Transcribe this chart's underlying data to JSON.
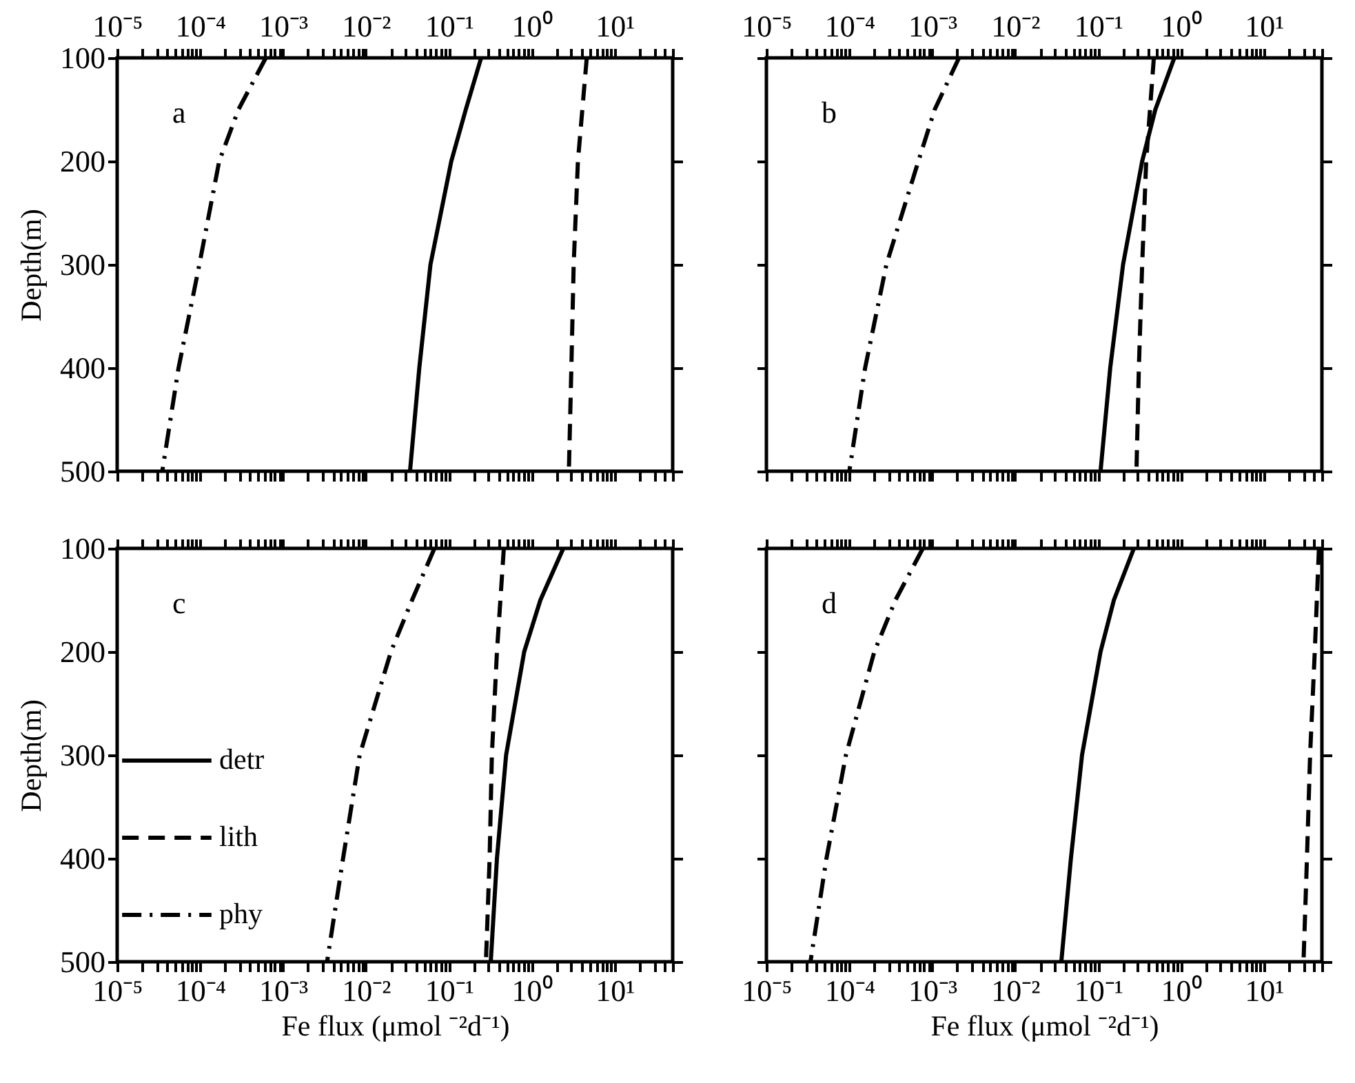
{
  "chart_data": [
    {
      "type": "line",
      "log": "x",
      "ylabel": "Depth(m)",
      "annotations": [
        "a"
      ],
      "xlim": [
        1e-05,
        50
      ],
      "xticks": [
        {
          "value": 1e-05,
          "label": "10⁻⁵"
        },
        {
          "value": 2e-05,
          "label": null
        },
        {
          "value": 3e-05,
          "label": null
        },
        {
          "value": 4e-05,
          "label": null
        },
        {
          "value": 5e-05,
          "label": null
        },
        {
          "value": 6e-05,
          "label": null
        },
        {
          "value": 7e-05,
          "label": null
        },
        {
          "value": 8e-05,
          "label": null
        },
        {
          "value": 9e-05,
          "label": null
        },
        {
          "value": 0.0001,
          "label": "10⁻⁴"
        },
        {
          "value": 0.0002,
          "label": null
        },
        {
          "value": 0.0003,
          "label": null
        },
        {
          "value": 0.0004,
          "label": null
        },
        {
          "value": 0.0005,
          "label": null
        },
        {
          "value": 0.0006,
          "label": null
        },
        {
          "value": 0.0007,
          "label": null
        },
        {
          "value": 0.0008,
          "label": null
        },
        {
          "value": 0.0009,
          "label": null
        },
        {
          "value": 0.001,
          "label": "10⁻³"
        },
        {
          "value": 0.002,
          "label": null
        },
        {
          "value": 0.003,
          "label": null
        },
        {
          "value": 0.004,
          "label": null
        },
        {
          "value": 0.005,
          "label": null
        },
        {
          "value": 0.006,
          "label": null
        },
        {
          "value": 0.007,
          "label": null
        },
        {
          "value": 0.008,
          "label": null
        },
        {
          "value": 0.009,
          "label": null
        },
        {
          "value": 0.01,
          "label": "10⁻²"
        },
        {
          "value": 0.02,
          "label": null
        },
        {
          "value": 0.03,
          "label": null
        },
        {
          "value": 0.04,
          "label": null
        },
        {
          "value": 0.05,
          "label": null
        },
        {
          "value": 0.06,
          "label": null
        },
        {
          "value": 0.07,
          "label": null
        },
        {
          "value": 0.08,
          "label": null
        },
        {
          "value": 0.09,
          "label": null
        },
        {
          "value": 0.1,
          "label": "10⁻¹"
        },
        {
          "value": 0.2,
          "label": null
        },
        {
          "value": 0.3,
          "label": null
        },
        {
          "value": 0.4,
          "label": null
        },
        {
          "value": 0.5,
          "label": null
        },
        {
          "value": 0.6,
          "label": null
        },
        {
          "value": 0.7,
          "label": null
        },
        {
          "value": 0.8,
          "label": null
        },
        {
          "value": 0.9,
          "label": null
        },
        {
          "value": 1,
          "label": "10⁰"
        },
        {
          "value": 2,
          "label": null
        },
        {
          "value": 3,
          "label": null
        },
        {
          "value": 4,
          "label": null
        },
        {
          "value": 5,
          "label": null
        },
        {
          "value": 6,
          "label": null
        },
        {
          "value": 7,
          "label": null
        },
        {
          "value": 8,
          "label": null
        },
        {
          "value": 9,
          "label": null
        },
        {
          "value": 10,
          "label": "10¹"
        },
        {
          "value": 20,
          "label": null
        },
        {
          "value": 30,
          "label": null
        },
        {
          "value": 40,
          "label": null
        },
        {
          "value": 50,
          "label": null
        }
      ],
      "ylim": [
        500,
        100
      ],
      "yticks": [
        100,
        200,
        300,
        400,
        500
      ],
      "grid": false,
      "series": [
        {
          "color": "#000000",
          "line_style": "solid",
          "x": [
            0.245,
            0.16,
            0.107,
            0.06,
            0.044,
            0.034
          ],
          "values": [
            100,
            150,
            200,
            300,
            400,
            500
          ]
        },
        {
          "color": "#000000",
          "line_style": "dashed",
          "x": [
            4.6,
            3.6,
            3.2,
            3.0,
            2.8
          ],
          "values": [
            100,
            200,
            300,
            400,
            500
          ]
        },
        {
          "color": "#000000",
          "line_style": "dashdot",
          "x": [
            0.00062,
            0.00029,
            0.00017,
            9.8e-05,
            5.5e-05,
            3.5e-05
          ],
          "values": [
            100,
            150,
            200,
            300,
            400,
            500
          ]
        }
      ]
    },
    {
      "type": "line",
      "log": "x",
      "annotations": [
        "b"
      ],
      "tick_labels": "x",
      "xlim": [
        1e-05,
        50
      ],
      "xticks": [
        {
          "value": 1e-05,
          "label": "10⁻⁵"
        },
        {
          "value": 2e-05,
          "label": null
        },
        {
          "value": 3e-05,
          "label": null
        },
        {
          "value": 4e-05,
          "label": null
        },
        {
          "value": 5e-05,
          "label": null
        },
        {
          "value": 6e-05,
          "label": null
        },
        {
          "value": 7e-05,
          "label": null
        },
        {
          "value": 8e-05,
          "label": null
        },
        {
          "value": 9e-05,
          "label": null
        },
        {
          "value": 0.0001,
          "label": "10⁻⁴"
        },
        {
          "value": 0.0002,
          "label": null
        },
        {
          "value": 0.0003,
          "label": null
        },
        {
          "value": 0.0004,
          "label": null
        },
        {
          "value": 0.0005,
          "label": null
        },
        {
          "value": 0.0006,
          "label": null
        },
        {
          "value": 0.0007,
          "label": null
        },
        {
          "value": 0.0008,
          "label": null
        },
        {
          "value": 0.0009,
          "label": null
        },
        {
          "value": 0.001,
          "label": "10⁻³"
        },
        {
          "value": 0.002,
          "label": null
        },
        {
          "value": 0.003,
          "label": null
        },
        {
          "value": 0.004,
          "label": null
        },
        {
          "value": 0.005,
          "label": null
        },
        {
          "value": 0.006,
          "label": null
        },
        {
          "value": 0.007,
          "label": null
        },
        {
          "value": 0.008,
          "label": null
        },
        {
          "value": 0.009,
          "label": null
        },
        {
          "value": 0.01,
          "label": "10⁻²"
        },
        {
          "value": 0.02,
          "label": null
        },
        {
          "value": 0.03,
          "label": null
        },
        {
          "value": 0.04,
          "label": null
        },
        {
          "value": 0.05,
          "label": null
        },
        {
          "value": 0.06,
          "label": null
        },
        {
          "value": 0.07,
          "label": null
        },
        {
          "value": 0.08,
          "label": null
        },
        {
          "value": 0.09,
          "label": null
        },
        {
          "value": 0.1,
          "label": "10⁻¹"
        },
        {
          "value": 0.2,
          "label": null
        },
        {
          "value": 0.3,
          "label": null
        },
        {
          "value": 0.4,
          "label": null
        },
        {
          "value": 0.5,
          "label": null
        },
        {
          "value": 0.6,
          "label": null
        },
        {
          "value": 0.7,
          "label": null
        },
        {
          "value": 0.8,
          "label": null
        },
        {
          "value": 0.9,
          "label": null
        },
        {
          "value": 1,
          "label": "10⁰"
        },
        {
          "value": 2,
          "label": null
        },
        {
          "value": 3,
          "label": null
        },
        {
          "value": 4,
          "label": null
        },
        {
          "value": 5,
          "label": null
        },
        {
          "value": 6,
          "label": null
        },
        {
          "value": 7,
          "label": null
        },
        {
          "value": 8,
          "label": null
        },
        {
          "value": 9,
          "label": null
        },
        {
          "value": 10,
          "label": "10¹"
        },
        {
          "value": 20,
          "label": null
        },
        {
          "value": 30,
          "label": null
        },
        {
          "value": 40,
          "label": null
        },
        {
          "value": 50,
          "label": null
        }
      ],
      "ylim": [
        500,
        100
      ],
      "yticks": [
        100,
        200,
        300,
        400,
        500
      ],
      "grid": false,
      "series": [
        {
          "color": "#000000",
          "line_style": "solid",
          "x": [
            0.83,
            0.49,
            0.34,
            0.2,
            0.14,
            0.107
          ],
          "values": [
            100,
            150,
            200,
            300,
            400,
            500
          ]
        },
        {
          "color": "#000000",
          "line_style": "dashed",
          "x": [
            0.47,
            0.38,
            0.34,
            0.31,
            0.29
          ],
          "values": [
            100,
            200,
            300,
            400,
            500
          ]
        },
        {
          "color": "#000000",
          "line_style": "dashdot",
          "x": [
            0.0021,
            0.00107,
            0.00068,
            0.00028,
            0.000155,
            0.0001
          ],
          "values": [
            100,
            150,
            200,
            300,
            400,
            500
          ]
        }
      ]
    },
    {
      "type": "line",
      "log": "x",
      "ylabel": "Depth(m)",
      "xlabel": "Fe flux (μmol ⁻²d⁻¹)",
      "annotations": [
        "c"
      ],
      "xlim": [
        1e-05,
        50
      ],
      "xticks": [
        {
          "value": 1e-05,
          "label": "10⁻⁵"
        },
        {
          "value": 2e-05,
          "label": null
        },
        {
          "value": 3e-05,
          "label": null
        },
        {
          "value": 4e-05,
          "label": null
        },
        {
          "value": 5e-05,
          "label": null
        },
        {
          "value": 6e-05,
          "label": null
        },
        {
          "value": 7e-05,
          "label": null
        },
        {
          "value": 8e-05,
          "label": null
        },
        {
          "value": 9e-05,
          "label": null
        },
        {
          "value": 0.0001,
          "label": "10⁻⁴"
        },
        {
          "value": 0.0002,
          "label": null
        },
        {
          "value": 0.0003,
          "label": null
        },
        {
          "value": 0.0004,
          "label": null
        },
        {
          "value": 0.0005,
          "label": null
        },
        {
          "value": 0.0006,
          "label": null
        },
        {
          "value": 0.0007,
          "label": null
        },
        {
          "value": 0.0008,
          "label": null
        },
        {
          "value": 0.0009,
          "label": null
        },
        {
          "value": 0.001,
          "label": "10⁻³"
        },
        {
          "value": 0.002,
          "label": null
        },
        {
          "value": 0.003,
          "label": null
        },
        {
          "value": 0.004,
          "label": null
        },
        {
          "value": 0.005,
          "label": null
        },
        {
          "value": 0.006,
          "label": null
        },
        {
          "value": 0.007,
          "label": null
        },
        {
          "value": 0.008,
          "label": null
        },
        {
          "value": 0.009,
          "label": null
        },
        {
          "value": 0.01,
          "label": "10⁻²"
        },
        {
          "value": 0.02,
          "label": null
        },
        {
          "value": 0.03,
          "label": null
        },
        {
          "value": 0.04,
          "label": null
        },
        {
          "value": 0.05,
          "label": null
        },
        {
          "value": 0.06,
          "label": null
        },
        {
          "value": 0.07,
          "label": null
        },
        {
          "value": 0.08,
          "label": null
        },
        {
          "value": 0.09,
          "label": null
        },
        {
          "value": 0.1,
          "label": "10⁻¹"
        },
        {
          "value": 0.2,
          "label": null
        },
        {
          "value": 0.3,
          "label": null
        },
        {
          "value": 0.4,
          "label": null
        },
        {
          "value": 0.5,
          "label": null
        },
        {
          "value": 0.6,
          "label": null
        },
        {
          "value": 0.7,
          "label": null
        },
        {
          "value": 0.8,
          "label": null
        },
        {
          "value": 0.9,
          "label": null
        },
        {
          "value": 1,
          "label": "10⁰"
        },
        {
          "value": 2,
          "label": null
        },
        {
          "value": 3,
          "label": null
        },
        {
          "value": 4,
          "label": null
        },
        {
          "value": 5,
          "label": null
        },
        {
          "value": 6,
          "label": null
        },
        {
          "value": 7,
          "label": null
        },
        {
          "value": 8,
          "label": null
        },
        {
          "value": 9,
          "label": null
        },
        {
          "value": 10,
          "label": "10¹"
        },
        {
          "value": 20,
          "label": null
        },
        {
          "value": 30,
          "label": null
        },
        {
          "value": 40,
          "label": null
        },
        {
          "value": 50,
          "label": null
        }
      ],
      "ylim": [
        500,
        100
      ],
      "yticks": [
        100,
        200,
        300,
        400,
        500
      ],
      "grid": false,
      "legend": "left",
      "series": [
        {
          "name": "detr",
          "color": "#000000",
          "line_style": "solid",
          "x": [
            2.4,
            1.27,
            0.81,
            0.49,
            0.38,
            0.32
          ],
          "values": [
            100,
            150,
            200,
            300,
            400,
            500
          ]
        },
        {
          "name": "lith",
          "color": "#000000",
          "line_style": "dashed",
          "x": [
            0.46,
            0.38,
            0.33,
            0.31,
            0.28
          ],
          "values": [
            100,
            200,
            300,
            400,
            500
          ]
        },
        {
          "name": "phy",
          "color": "#000000",
          "line_style": "dashdot",
          "x": [
            0.067,
            0.036,
            0.02,
            0.0084,
            0.0053,
            0.0034
          ],
          "values": [
            100,
            150,
            200,
            300,
            400,
            500
          ]
        }
      ]
    },
    {
      "type": "line",
      "log": "x",
      "xlabel": "Fe flux (μmol ⁻²d⁻¹)",
      "annotations": [
        "d"
      ],
      "tick_labels": "x",
      "xlim": [
        1e-05,
        50
      ],
      "xticks": [
        {
          "value": 1e-05,
          "label": "10⁻⁵"
        },
        {
          "value": 2e-05,
          "label": null
        },
        {
          "value": 3e-05,
          "label": null
        },
        {
          "value": 4e-05,
          "label": null
        },
        {
          "value": 5e-05,
          "label": null
        },
        {
          "value": 6e-05,
          "label": null
        },
        {
          "value": 7e-05,
          "label": null
        },
        {
          "value": 8e-05,
          "label": null
        },
        {
          "value": 9e-05,
          "label": null
        },
        {
          "value": 0.0001,
          "label": "10⁻⁴"
        },
        {
          "value": 0.0002,
          "label": null
        },
        {
          "value": 0.0003,
          "label": null
        },
        {
          "value": 0.0004,
          "label": null
        },
        {
          "value": 0.0005,
          "label": null
        },
        {
          "value": 0.0006,
          "label": null
        },
        {
          "value": 0.0007,
          "label": null
        },
        {
          "value": 0.0008,
          "label": null
        },
        {
          "value": 0.0009,
          "label": null
        },
        {
          "value": 0.001,
          "label": "10⁻³"
        },
        {
          "value": 0.002,
          "label": null
        },
        {
          "value": 0.003,
          "label": null
        },
        {
          "value": 0.004,
          "label": null
        },
        {
          "value": 0.005,
          "label": null
        },
        {
          "value": 0.006,
          "label": null
        },
        {
          "value": 0.007,
          "label": null
        },
        {
          "value": 0.008,
          "label": null
        },
        {
          "value": 0.009,
          "label": null
        },
        {
          "value": 0.01,
          "label": "10⁻²"
        },
        {
          "value": 0.02,
          "label": null
        },
        {
          "value": 0.03,
          "label": null
        },
        {
          "value": 0.04,
          "label": null
        },
        {
          "value": 0.05,
          "label": null
        },
        {
          "value": 0.06,
          "label": null
        },
        {
          "value": 0.07,
          "label": null
        },
        {
          "value": 0.08,
          "label": null
        },
        {
          "value": 0.09,
          "label": null
        },
        {
          "value": 0.1,
          "label": "10⁻¹"
        },
        {
          "value": 0.2,
          "label": null
        },
        {
          "value": 0.3,
          "label": null
        },
        {
          "value": 0.4,
          "label": null
        },
        {
          "value": 0.5,
          "label": null
        },
        {
          "value": 0.6,
          "label": null
        },
        {
          "value": 0.7,
          "label": null
        },
        {
          "value": 0.8,
          "label": null
        },
        {
          "value": 0.9,
          "label": null
        },
        {
          "value": 1,
          "label": "10⁰"
        },
        {
          "value": 2,
          "label": null
        },
        {
          "value": 3,
          "label": null
        },
        {
          "value": 4,
          "label": null
        },
        {
          "value": 5,
          "label": null
        },
        {
          "value": 6,
          "label": null
        },
        {
          "value": 7,
          "label": null
        },
        {
          "value": 8,
          "label": null
        },
        {
          "value": 9,
          "label": null
        },
        {
          "value": 10,
          "label": "10¹"
        },
        {
          "value": 20,
          "label": null
        },
        {
          "value": 30,
          "label": null
        },
        {
          "value": 40,
          "label": null
        },
        {
          "value": 50,
          "label": null
        }
      ],
      "ylim": [
        500,
        100
      ],
      "yticks": [
        100,
        200,
        300,
        400,
        500
      ],
      "grid": false,
      "series": [
        {
          "color": "#000000",
          "line_style": "solid",
          "x": [
            0.27,
            0.155,
            0.107,
            0.064,
            0.047,
            0.036
          ],
          "values": [
            100,
            150,
            200,
            300,
            400,
            500
          ]
        },
        {
          "color": "#000000",
          "line_style": "dashed",
          "x": [
            46,
            41,
            36,
            33,
            30
          ],
          "values": [
            100,
            200,
            300,
            400,
            500
          ]
        },
        {
          "color": "#000000",
          "line_style": "dashdot",
          "x": [
            0.00077,
            0.00036,
            0.0002,
            9.1e-05,
            5.3e-05,
            3.4e-05
          ],
          "values": [
            100,
            150,
            200,
            300,
            400,
            500
          ]
        }
      ]
    }
  ]
}
